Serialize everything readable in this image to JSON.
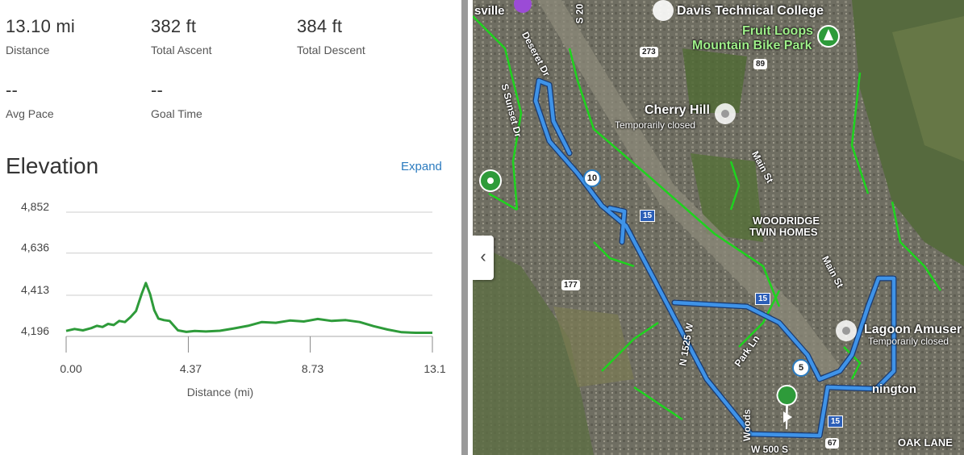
{
  "stats": {
    "distance": {
      "value": "13.10 mi",
      "label": "Distance"
    },
    "ascent": {
      "value": "382 ft",
      "label": "Total Ascent"
    },
    "descent": {
      "value": "384 ft",
      "label": "Total Descent"
    },
    "pace": {
      "value": "--",
      "label": "Avg Pace"
    },
    "goal": {
      "value": "--",
      "label": "Goal Time"
    }
  },
  "elevation": {
    "title": "Elevation",
    "expand_label": "Expand"
  },
  "colors": {
    "route": "#2e9b3a",
    "accent": "#2b7bbf",
    "grid": "#cccccc"
  },
  "chart_data": {
    "type": "line",
    "title": "Elevation",
    "xlabel": "Distance (mi)",
    "ylabel": "",
    "ylim": [
      4196,
      4852
    ],
    "xlim": [
      0,
      13.1
    ],
    "yticks": [
      "4,852",
      "4,636",
      "4,413",
      "4,196"
    ],
    "ytick_values": [
      4852,
      4636,
      4413,
      4196
    ],
    "xticks": [
      "0.00",
      "4.37",
      "8.73",
      "13.1"
    ],
    "xtick_values": [
      0,
      4.37,
      8.73,
      13.1
    ],
    "series": [
      {
        "name": "Elevation",
        "x": [
          0,
          0.3,
          0.6,
          0.9,
          1.1,
          1.3,
          1.5,
          1.7,
          1.9,
          2.1,
          2.3,
          2.5,
          2.7,
          2.85,
          3.0,
          3.15,
          3.3,
          3.5,
          3.7,
          4.0,
          4.3,
          4.6,
          5.0,
          5.5,
          6.0,
          6.5,
          7.0,
          7.5,
          8.0,
          8.5,
          9.0,
          9.5,
          10.0,
          10.5,
          11.0,
          11.5,
          12.0,
          12.5,
          13.1
        ],
        "values": [
          4225,
          4235,
          4228,
          4240,
          4252,
          4246,
          4262,
          4256,
          4278,
          4272,
          4298,
          4330,
          4420,
          4478,
          4420,
          4335,
          4290,
          4282,
          4278,
          4228,
          4220,
          4225,
          4222,
          4226,
          4238,
          4252,
          4272,
          4268,
          4280,
          4275,
          4288,
          4278,
          4282,
          4272,
          4250,
          4232,
          4218,
          4215,
          4215
        ]
      }
    ]
  },
  "map": {
    "collapse_icon": "chevron-left-icon",
    "labels": {
      "davis": "Davis Technical College",
      "fruit_loops": "Fruit Loops",
      "mtb_park": "Mountain Bike Park",
      "cherry_hill": "Cherry Hill",
      "temp_closed": "Temporarily closed",
      "woodridge": "WOODRIDGE",
      "twin_homes": "TWIN HOMES",
      "lagoon": "Lagoon Amuser",
      "lagoon_closed": "Temporarily closed",
      "farmington": "nington",
      "oak_lane": "OAK LANE",
      "ville": "sville",
      "deseret": "Deseret Dr",
      "sunset": "S Sunset Dr",
      "main_st1": "Main St",
      "main_st2": "Main St",
      "park_ln": "Park Ln",
      "n1525": "N 1525 W",
      "w500s": "W 500 S",
      "s200": "S 20",
      "woods": "Woods"
    },
    "shields": {
      "r273": "273",
      "r89": "89",
      "r177": "177",
      "r67": "67",
      "i15a": "15",
      "i15b": "15",
      "i15c": "15"
    },
    "mile_markers": {
      "m10": "10",
      "m5": "5"
    }
  }
}
